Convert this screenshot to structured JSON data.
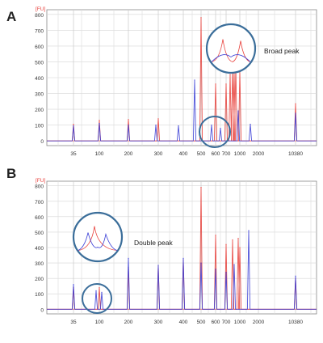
{
  "chart_data": [
    {
      "panel": "A",
      "type": "line",
      "unit_label": "[FU]",
      "annotation": "Broad peak",
      "yticks": [
        0,
        100,
        200,
        300,
        400,
        500,
        600,
        700,
        800
      ],
      "ylim": [
        -30,
        830
      ],
      "xticks": [
        "35",
        "100",
        "200",
        "300",
        "400",
        "500",
        "600",
        "700",
        "1000",
        "2000",
        "10380"
      ],
      "grid": true,
      "series": [
        {
          "color": "#e8413c",
          "peaks": [
            {
              "x": "35",
              "h": 105
            },
            {
              "x": "100",
              "h": 130
            },
            {
              "x": "200",
              "h": 135
            },
            {
              "x": "300",
              "h": 140
            },
            {
              "x": "500",
              "h": 780
            },
            {
              "x": "600",
              "h": 360
            },
            {
              "x": "700",
              "h": 360
            },
            {
              "x": "750",
              "h": 420
            },
            {
              "x": "800",
              "h": 460
            },
            {
              "x": "850",
              "h": 430
            },
            {
              "x": "950",
              "h": 475
            },
            {
              "x": "1000",
              "h": 440
            },
            {
              "x": "10380",
              "h": 235
            }
          ]
        },
        {
          "color": "#3b3fd6",
          "peaks": [
            {
              "x": "35",
              "h": 95
            },
            {
              "x": "100",
              "h": 110
            },
            {
              "x": "200",
              "h": 100
            },
            {
              "x": "250",
              "h": 100
            },
            {
              "x": "350",
              "h": 95
            },
            {
              "x": "450",
              "h": 385
            },
            {
              "x": "550",
              "h": 100
            },
            {
              "x": "650",
              "h": 80
            },
            {
              "x": "900",
              "h": 190
            },
            {
              "x": "1300",
              "h": 105
            },
            {
              "x": "10380",
              "h": 175
            }
          ]
        }
      ]
    },
    {
      "panel": "B",
      "type": "line",
      "unit_label": "[FU]",
      "annotation": "Double peak",
      "yticks": [
        0,
        100,
        200,
        300,
        400,
        500,
        600,
        700,
        800
      ],
      "ylim": [
        -30,
        830
      ],
      "xticks": [
        "35",
        "100",
        "200",
        "300",
        "400",
        "500",
        "600",
        "700",
        "1000",
        "2000",
        "10380"
      ],
      "grid": true,
      "series": [
        {
          "color": "#e8413c",
          "peaks": [
            {
              "x": "35",
              "h": 140
            },
            {
              "x": "100",
              "h": 140
            },
            {
              "x": "200",
              "h": 270
            },
            {
              "x": "300",
              "h": 280
            },
            {
              "x": "400",
              "h": 320
            },
            {
              "x": "500",
              "h": 790
            },
            {
              "x": "600",
              "h": 480
            },
            {
              "x": "700",
              "h": 420
            },
            {
              "x": "800",
              "h": 450
            },
            {
              "x": "900",
              "h": 460
            },
            {
              "x": "1000",
              "h": 400
            },
            {
              "x": "10380",
              "h": 200
            }
          ]
        },
        {
          "color": "#3b3fd6",
          "peaks": [
            {
              "x": "35",
              "h": 160
            },
            {
              "x": "90",
              "h": 120
            },
            {
              "x": "110",
              "h": 110
            },
            {
              "x": "200",
              "h": 330
            },
            {
              "x": "300",
              "h": 285
            },
            {
              "x": "400",
              "h": 330
            },
            {
              "x": "500",
              "h": 300
            },
            {
              "x": "600",
              "h": 260
            },
            {
              "x": "700",
              "h": 240
            },
            {
              "x": "850",
              "h": 290
            },
            {
              "x": "1050",
              "h": 510
            },
            {
              "x": "10380",
              "h": 215
            }
          ]
        }
      ]
    }
  ]
}
